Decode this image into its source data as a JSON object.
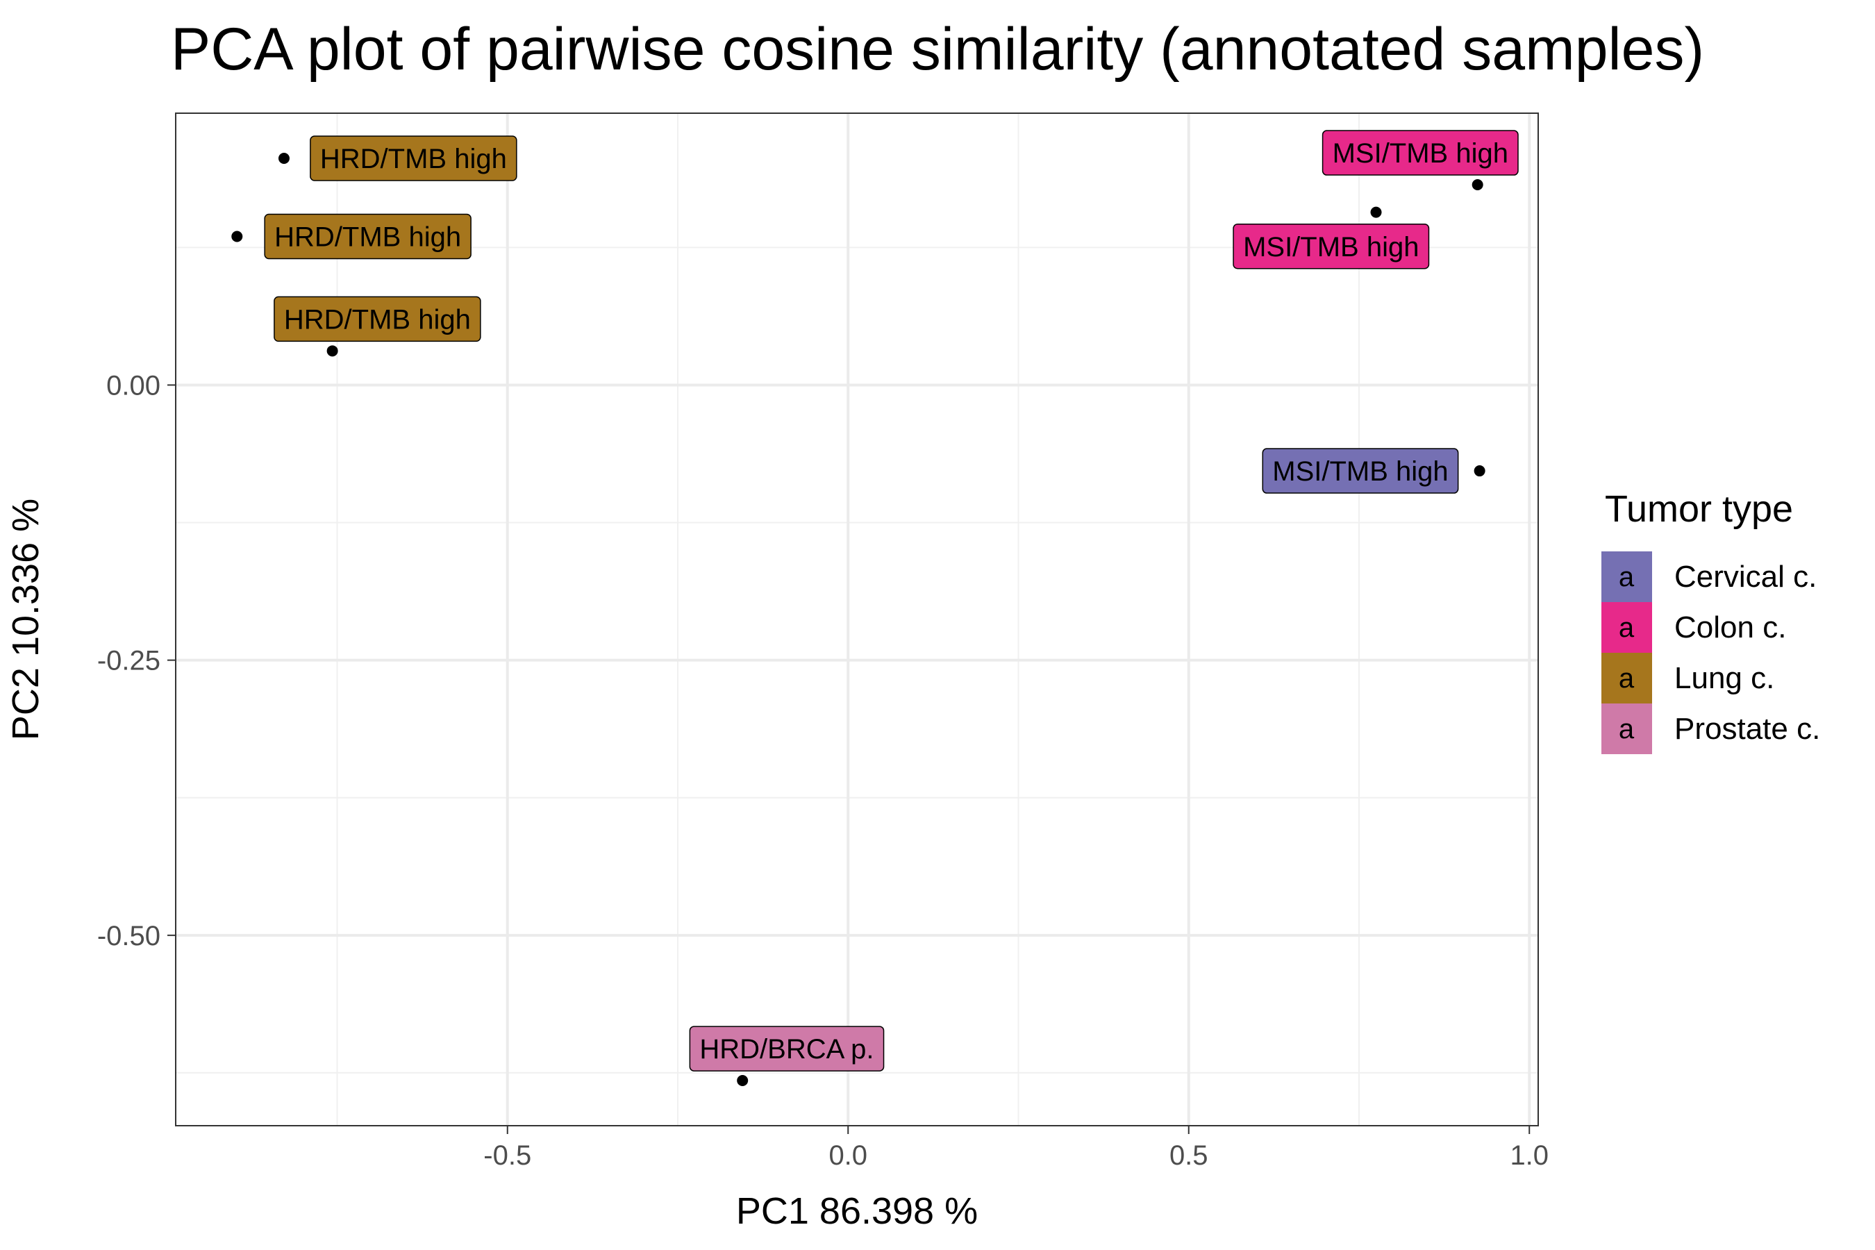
{
  "chart_data": {
    "type": "scatter",
    "title": "PCA plot of pairwise cosine similarity (annotated samples)",
    "xlabel": "PC1 86.398 %",
    "ylabel": "PC2 10.336 %",
    "xlim": [
      -0.987,
      1.013
    ],
    "ylim": [
      -0.673,
      0.247
    ],
    "x_ticks": [
      -0.5,
      0.0,
      0.5,
      1.0
    ],
    "x_tick_labels": [
      "-0.5",
      "0.0",
      "0.5",
      "1.0"
    ],
    "y_ticks": [
      0.0,
      -0.25,
      -0.5
    ],
    "y_tick_labels": [
      "0.00",
      "-0.25",
      "-0.50"
    ],
    "grid": true,
    "legend": {
      "title": "Tumor type",
      "placement": "right",
      "key_glyph": "a",
      "entries": [
        {
          "name": "Cervical c.",
          "color": "#7570b3"
        },
        {
          "name": "Colon c.",
          "color": "#e7298a"
        },
        {
          "name": "Lung c.",
          "color": "#a6761d"
        },
        {
          "name": "Prostate c.",
          "color": "#cf7aa8"
        }
      ]
    },
    "points": [
      {
        "x": -0.828,
        "y": 0.206,
        "label": "HRD/TMB high",
        "group": "Lung c.",
        "label_x": -0.638,
        "label_y": 0.206
      },
      {
        "x": -0.897,
        "y": 0.135,
        "label": "HRD/TMB high",
        "group": "Lung c.",
        "label_x": -0.705,
        "label_y": 0.135
      },
      {
        "x": -0.757,
        "y": 0.031,
        "label": "HRD/TMB high",
        "group": "Lung c.",
        "label_x": -0.691,
        "label_y": 0.06
      },
      {
        "x": 0.924,
        "y": 0.182,
        "label": "MSI/TMB high",
        "group": "Colon c.",
        "label_x": 0.84,
        "label_y": 0.211
      },
      {
        "x": 0.775,
        "y": 0.157,
        "label": "MSI/TMB high",
        "group": "Colon c.",
        "label_x": 0.709,
        "label_y": 0.126
      },
      {
        "x": 0.927,
        "y": -0.078,
        "label": "MSI/TMB high",
        "group": "Cervical c.",
        "label_x": 0.752,
        "label_y": -0.078
      },
      {
        "x": -0.155,
        "y": -0.632,
        "label": "HRD/BRCA p.",
        "group": "Prostate c.",
        "label_x": -0.09,
        "label_y": -0.603
      }
    ]
  }
}
